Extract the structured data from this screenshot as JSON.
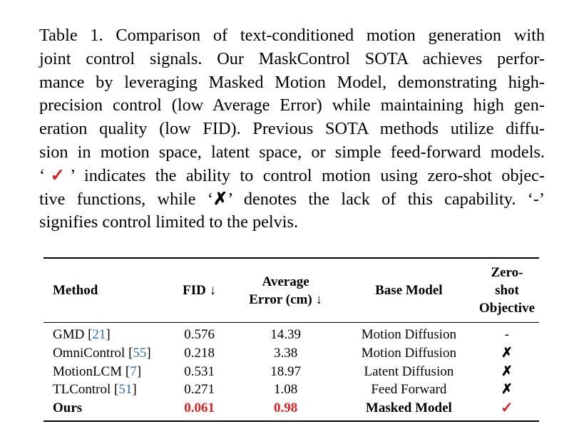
{
  "caption": {
    "lines": [
      "Table 1.  Comparison of text-conditioned motion generation with",
      "joint control signals.  Our MaskControl SOTA achieves perfor-",
      "mance by leveraging Masked Motion Model, demonstrating high-",
      "precision control (low Average Error) while maintaining high gen-",
      "eration quality (low FID). Previous SOTA methods utilize diffu-",
      "sion in motion space, latent space, or simple feed-forward models."
    ],
    "line7_open": "‘",
    "line7_check": "✓",
    "line7_rest": "’ indicates the ability to control motion using zero-shot objec-",
    "line8_pre": "tive functions, while ‘",
    "line8_cross": "✗",
    "line8_rest": "’ denotes the lack of this capability.  ‘-’",
    "line9": "signifies control limited to the pelvis."
  },
  "table": {
    "headers": {
      "method": "Method",
      "fid": "FID ↓",
      "err_line1": "Average",
      "err_line2": "Error (cm) ↓",
      "base": "Base Model",
      "zero_line1": "Zero-shot",
      "zero_line2": "Objective"
    },
    "rows": [
      {
        "method": "GMD",
        "ref": "21",
        "fid": "0.576",
        "err": "14.39",
        "base": "Motion Diffusion",
        "zero": "-"
      },
      {
        "method": "OmniControl",
        "ref": "55",
        "fid": "0.218",
        "err": "3.38",
        "base": "Motion Diffusion",
        "zero": "✗"
      },
      {
        "method": "MotionLCM",
        "ref": "7",
        "fid": "0.531",
        "err": "18.97",
        "base": "Latent Diffusion",
        "zero": "✗"
      },
      {
        "method": "TLControl",
        "ref": "51",
        "fid": "0.271",
        "err": "1.08",
        "base": "Feed Forward",
        "zero": "✗"
      }
    ],
    "ours": {
      "method": "Ours",
      "fid": "0.061",
      "err": "0.98",
      "base": "Masked Model",
      "zero": "✓"
    }
  },
  "colors": {
    "highlight": "#e02020",
    "citation": "#2a6fb5"
  }
}
